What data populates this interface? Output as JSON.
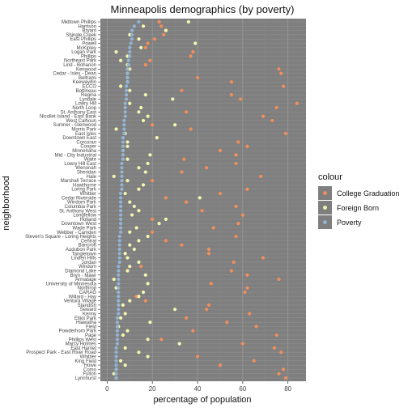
{
  "chart_data": {
    "type": "scatter",
    "title": "Minneapolis demographics (by poverty)",
    "xlabel": "percentage of population",
    "ylabel": "neighborhood",
    "xlim": [
      -3,
      88
    ],
    "x_ticks": [
      0,
      20,
      40,
      60,
      80
    ],
    "grid": true,
    "legend": {
      "title": "colour",
      "position": "right",
      "entries": [
        {
          "name": "College Graduation",
          "color": "#f28e5c"
        },
        {
          "name": "Foreign Born",
          "color": "#f4f7b0"
        },
        {
          "name": "Poverty",
          "color": "#93b5d4"
        }
      ]
    },
    "categories": [
      "Midtown Phillips",
      "Harrison",
      "Bryant",
      "Shingle Creek",
      "East Phillips",
      "Powell",
      "McKinley",
      "Logan Park",
      "Phillips",
      "Northeast Park",
      "Lind - Bohanon",
      "Kenwood",
      "Cedar - Isles - Dean",
      "Beltrami",
      "Keewaydin",
      "ECCO",
      "Bottineau",
      "Regina",
      "Lyndale",
      "Lowry Hill",
      "North Loop",
      "St. Anthony East",
      "Nicollet Island - East Bank",
      "West Calhoun",
      "Sumner - Glenwood",
      "Morris Park",
      "East Isles",
      "Downtown East",
      "Corcoran",
      "Cooper",
      "Minnehaha",
      "Mid - City Industrial",
      "Waite",
      "Lowry Hill East",
      "Wenonah",
      "Sheridan",
      "Hale",
      "Marshall Terrace",
      "Hawthorne",
      "Loring Park",
      "Whittier",
      "Cedar Riverside",
      "Windom Park",
      "Columbia Park",
      "St. Anthony West",
      "Longfellow",
      "Holland",
      "Downtown West",
      "Wade Park",
      "Webber - Camden",
      "Steven's Square - Loring Heights",
      "Central",
      "Bancroft",
      "Audubon Park",
      "Tangletown",
      "Linden Hills",
      "Jordan",
      "Windom",
      "Diamond Lake",
      "Bryn - Mawr",
      "Armatage",
      "University of Minnesota",
      "Northrop",
      "CARAG",
      "Willard - Hay",
      "Ventura Village",
      "Standish",
      "Seward",
      "Kenny",
      "Elliot Park",
      "Hiawatha",
      "Field",
      "Powderhorn Park",
      "Page",
      "Phillips West",
      "Marcy Holmes",
      "East Harriet",
      "Prospect Park - East River Road",
      "Whittier",
      "King Field",
      "Howe",
      "Como",
      "Fulton",
      "Lynnhurst"
    ],
    "series": [
      {
        "name": "College Graduation",
        "values": [
          23,
          24,
          26,
          25,
          21,
          18,
          17,
          38,
          37,
          19,
          17,
          76,
          77,
          40,
          55,
          78,
          33,
          55,
          59,
          84,
          75,
          35,
          69,
          73,
          20,
          37,
          79,
          22,
          58,
          62,
          50,
          57,
          34,
          57,
          44,
          33,
          68,
          20,
          16,
          62,
          50,
          26,
          35,
          57,
          42,
          60,
          20,
          58,
          47,
          20,
          57,
          26,
          33,
          45,
          45,
          69,
          56,
          15,
          55,
          62,
          76,
          46,
          62,
          61,
          13,
          17,
          45,
          44,
          63,
          35,
          53,
          66,
          38,
          75,
          24,
          60,
          74,
          77,
          40,
          65,
          50,
          78,
          76,
          79
        ]
      },
      {
        "name": "Foreign Born",
        "values": [
          36,
          16,
          26,
          10,
          14,
          39,
          15,
          4,
          9,
          6,
          9,
          10,
          9,
          9,
          9,
          6,
          10,
          17,
          29,
          10,
          15,
          14,
          18,
          16,
          30,
          4,
          8,
          22,
          9,
          9,
          7,
          19,
          9,
          18,
          14,
          17,
          3,
          9,
          16,
          14,
          8,
          41,
          10,
          12,
          14,
          11,
          26,
          23,
          13,
          10,
          18,
          14,
          10,
          12,
          8,
          9,
          14,
          10,
          9,
          17,
          3,
          18,
          4,
          16,
          14,
          10,
          7,
          30,
          8,
          6,
          19,
          5,
          9,
          7,
          18,
          32,
          8,
          14,
          18,
          6,
          8,
          4,
          3,
          4
        ]
      },
      {
        "name": "Poverty",
        "values": [
          14,
          12,
          11,
          11,
          11,
          10.5,
          10,
          10,
          10,
          9.5,
          9.5,
          9,
          9,
          9,
          9,
          8.5,
          8.5,
          8.5,
          8.5,
          8,
          8,
          8,
          8,
          7.5,
          7.5,
          7.5,
          7.5,
          7,
          7,
          7,
          7,
          7,
          7,
          6.5,
          6.5,
          6.5,
          6.5,
          6.5,
          6.5,
          6.5,
          6,
          6,
          6,
          6,
          6,
          6,
          6,
          6,
          6,
          6,
          5.5,
          5.5,
          5.5,
          5.5,
          5.5,
          5.5,
          5.5,
          5,
          5,
          5,
          5,
          5,
          5,
          5,
          5,
          5,
          5,
          5,
          5,
          4.5,
          4.5,
          4.5,
          4.5,
          4.5,
          4.5,
          4.5,
          4,
          4,
          4,
          4,
          4,
          4,
          4,
          4
        ]
      }
    ]
  }
}
